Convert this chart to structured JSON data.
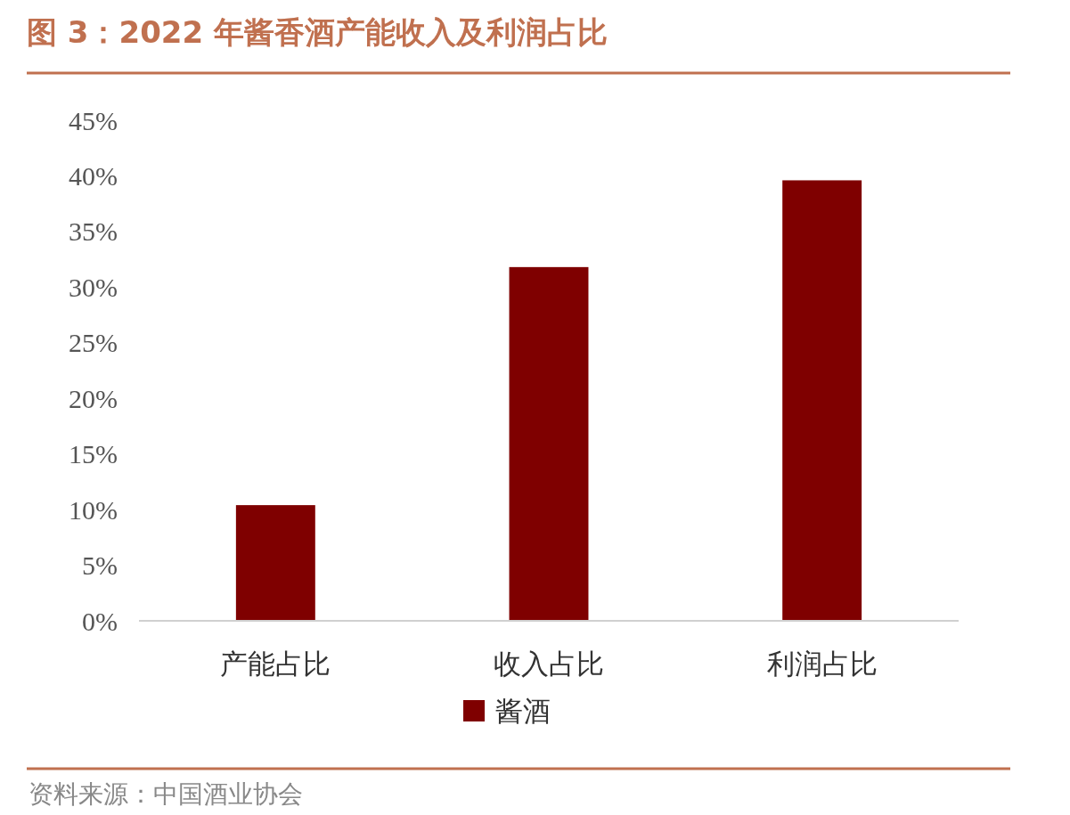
{
  "chart_data": {
    "type": "bar",
    "title": "图 3：2022 年酱香酒产能收入及利润占比",
    "categories": [
      "产能占比",
      "收入占比",
      "利润占比"
    ],
    "series": [
      {
        "name": "酱酒",
        "color": "#7f0000",
        "values": [
          10.4,
          31.8,
          39.6
        ]
      }
    ],
    "ylim": [
      0,
      45
    ],
    "yticks": [
      {
        "value": 0,
        "label": "0%"
      },
      {
        "value": 5,
        "label": "5%"
      },
      {
        "value": 10,
        "label": "10%"
      },
      {
        "value": 15,
        "label": "15%"
      },
      {
        "value": 20,
        "label": "20%"
      },
      {
        "value": 25,
        "label": "25%"
      },
      {
        "value": 30,
        "label": "30%"
      },
      {
        "value": 35,
        "label": "35%"
      },
      {
        "value": 40,
        "label": "40%"
      },
      {
        "value": 45,
        "label": "45%"
      }
    ],
    "grid": false,
    "legend": "bottom",
    "annotations": [
      "资料来源：中国酒业协会"
    ]
  }
}
